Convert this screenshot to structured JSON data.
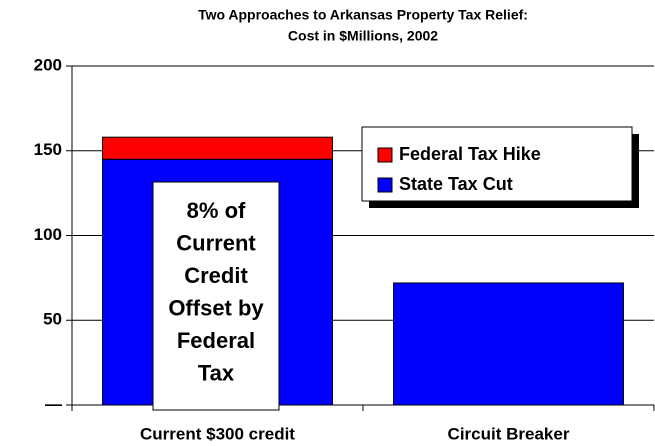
{
  "chart_data": {
    "type": "stacked_bar",
    "title": [
      "Two Approaches to Arkansas Property Tax Relief:",
      "Cost in $Millions, 2002"
    ],
    "categories": [
      "Current $300 credit",
      "Circuit Breaker"
    ],
    "series": [
      {
        "name": "State Tax Cut",
        "color": "#0000ff",
        "values": [
          145,
          72
        ]
      },
      {
        "name": "Federal Tax Hike",
        "color": "#ff0000",
        "values": [
          13,
          0
        ]
      }
    ],
    "ylim": [
      0,
      200
    ],
    "yticks": [
      {
        "value": 0,
        "label": "—"
      },
      50,
      100,
      150,
      200
    ],
    "grid": true,
    "legend": "upper right",
    "annotation": [
      "8% of",
      "Current",
      "Credit",
      "Offset by",
      "Federal",
      "Tax"
    ]
  }
}
